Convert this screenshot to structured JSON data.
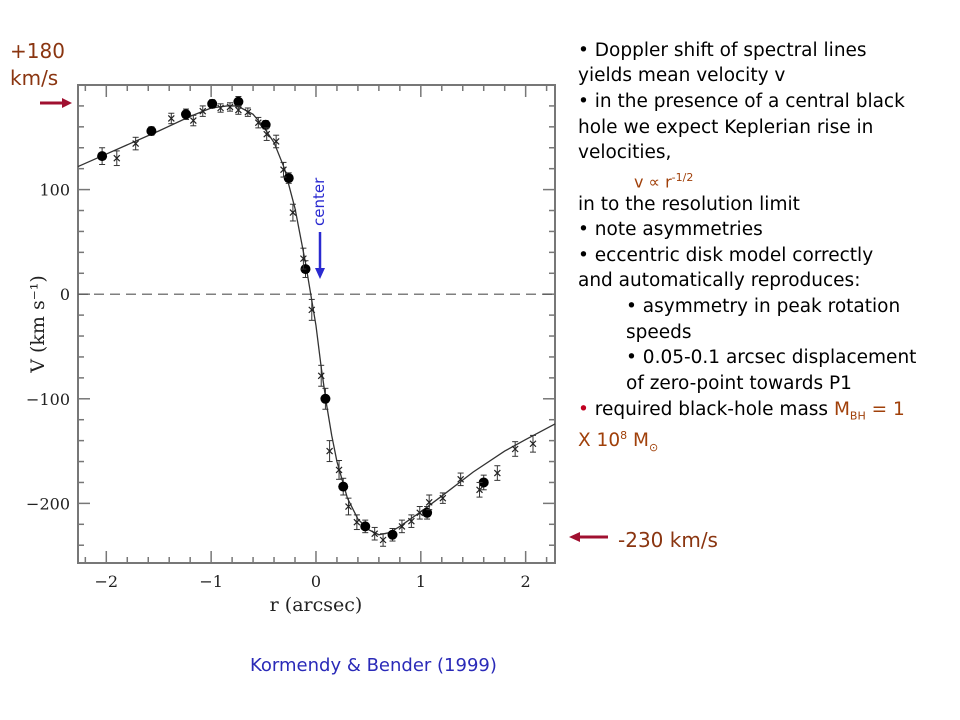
{
  "annotations": {
    "top_left_value": "+180",
    "top_left_unit": "km/s",
    "bottom_right": "-230 km/s",
    "center_label": "center",
    "citation": "Kormendy & Bender (1999)"
  },
  "bullets": {
    "b1_line1": "• Doppler shift of spectral lines",
    "b1_line2": "yields mean velocity v",
    "b2_line1": "• in the presence of a central black",
    "b2_line2": "hole we expect Keplerian rise in",
    "b2_line3": "velocities,",
    "formula_base": "v ∝ r",
    "formula_exp": "-1/2",
    "b2_line4": "in to the resolution limit",
    "b3": "• note asymmetries",
    "b4_line1": "• eccentric disk model correctly",
    "b4_line2": "and automatically reproduces:",
    "sub1_line1": "• asymmetry in peak rotation",
    "sub1_line2": "speeds",
    "sub2_line1": "• 0.05-0.1 arcsec displacement",
    "sub2_line2": "of zero-point towards P1",
    "b5_bullet": "•",
    "b5_text": " required black-hole mass ",
    "b5_M": "M",
    "b5_sub": "BH",
    "b5_eq": " = 1",
    "b5_line2_a": "X 10",
    "b5_line2_exp": "8",
    "b5_line2_M": " M",
    "b5_line2_sub": "⊙"
  },
  "colors": {
    "accent_brown": "#a0400a",
    "arrow_red": "#a01030",
    "center_blue": "#2a2ad0",
    "citation_blue": "#2a2ab8"
  },
  "chart_data": {
    "type": "scatter",
    "xlabel": "r (arcsec)",
    "ylabel": "V (km s⁻¹)",
    "xlim": [
      -2.27,
      2.28
    ],
    "ylim": [
      -257,
      200
    ],
    "xticks": [
      -2,
      -1,
      0,
      1,
      2
    ],
    "xtick_labels": [
      "−2",
      "−1",
      "0",
      "1",
      "2"
    ],
    "yticks": [
      100,
      0,
      -100,
      -200
    ],
    "ytick_labels": [
      "100",
      "0",
      "−100",
      "−200"
    ],
    "zero_line": "dashed",
    "series": [
      {
        "name": "filled circles",
        "marker": "circle",
        "x": [
          -2.04,
          -1.57,
          -1.24,
          -0.99,
          -0.74,
          -0.48,
          -0.26,
          -0.1,
          0.09,
          0.26,
          0.47,
          0.73,
          1.06,
          1.6
        ],
        "y": [
          132,
          156,
          172,
          182,
          184,
          162,
          111,
          24,
          -100,
          -184,
          -222,
          -230,
          -209,
          -180
        ],
        "err": [
          8,
          4,
          5,
          4,
          5,
          4,
          5,
          8,
          10,
          8,
          6,
          6,
          6,
          7
        ]
      },
      {
        "name": "crosses",
        "marker": "x",
        "x": [
          -1.9,
          -1.72,
          -1.38,
          -1.17,
          -1.08,
          -0.91,
          -0.82,
          -0.74,
          -0.65,
          -0.55,
          -0.47,
          -0.38,
          -0.31,
          -0.22,
          -0.12,
          -0.04,
          0.05,
          0.13,
          0.22,
          0.31,
          0.39,
          0.56,
          0.64,
          0.82,
          0.91,
          0.99,
          1.08,
          1.21,
          1.38,
          1.56,
          1.73,
          1.9,
          2.07
        ],
        "y": [
          130,
          144,
          168,
          166,
          175,
          178,
          179,
          176,
          174,
          164,
          153,
          146,
          119,
          78,
          34,
          -15,
          -78,
          -150,
          -168,
          -203,
          -218,
          -229,
          -235,
          -222,
          -217,
          -209,
          -199,
          -195,
          -177,
          -187,
          -171,
          -148,
          -143
        ],
        "err": [
          7,
          6,
          5,
          5,
          5,
          4,
          4,
          4,
          4,
          5,
          6,
          6,
          7,
          8,
          10,
          10,
          10,
          10,
          9,
          8,
          7,
          6,
          6,
          6,
          6,
          6,
          7,
          5,
          6,
          7,
          7,
          7,
          8
        ]
      },
      {
        "name": "model",
        "type": "line",
        "x": [
          -2.27,
          -2.0,
          -1.5,
          -1.2,
          -1.0,
          -0.85,
          -0.75,
          -0.6,
          -0.5,
          -0.4,
          -0.3,
          -0.2,
          -0.1,
          -0.05,
          0.0,
          0.05,
          0.1,
          0.15,
          0.2,
          0.3,
          0.4,
          0.5,
          0.6,
          0.7,
          0.8,
          1.0,
          1.2,
          1.5,
          1.8,
          2.0,
          2.28
        ],
        "y": [
          122,
          134,
          156,
          170,
          178,
          180,
          180,
          172,
          160,
          145,
          120,
          82,
          30,
          0,
          -30,
          -70,
          -105,
          -135,
          -160,
          -195,
          -215,
          -225,
          -230,
          -228,
          -222,
          -208,
          -193,
          -170,
          -150,
          -139,
          -124
        ]
      }
    ]
  }
}
